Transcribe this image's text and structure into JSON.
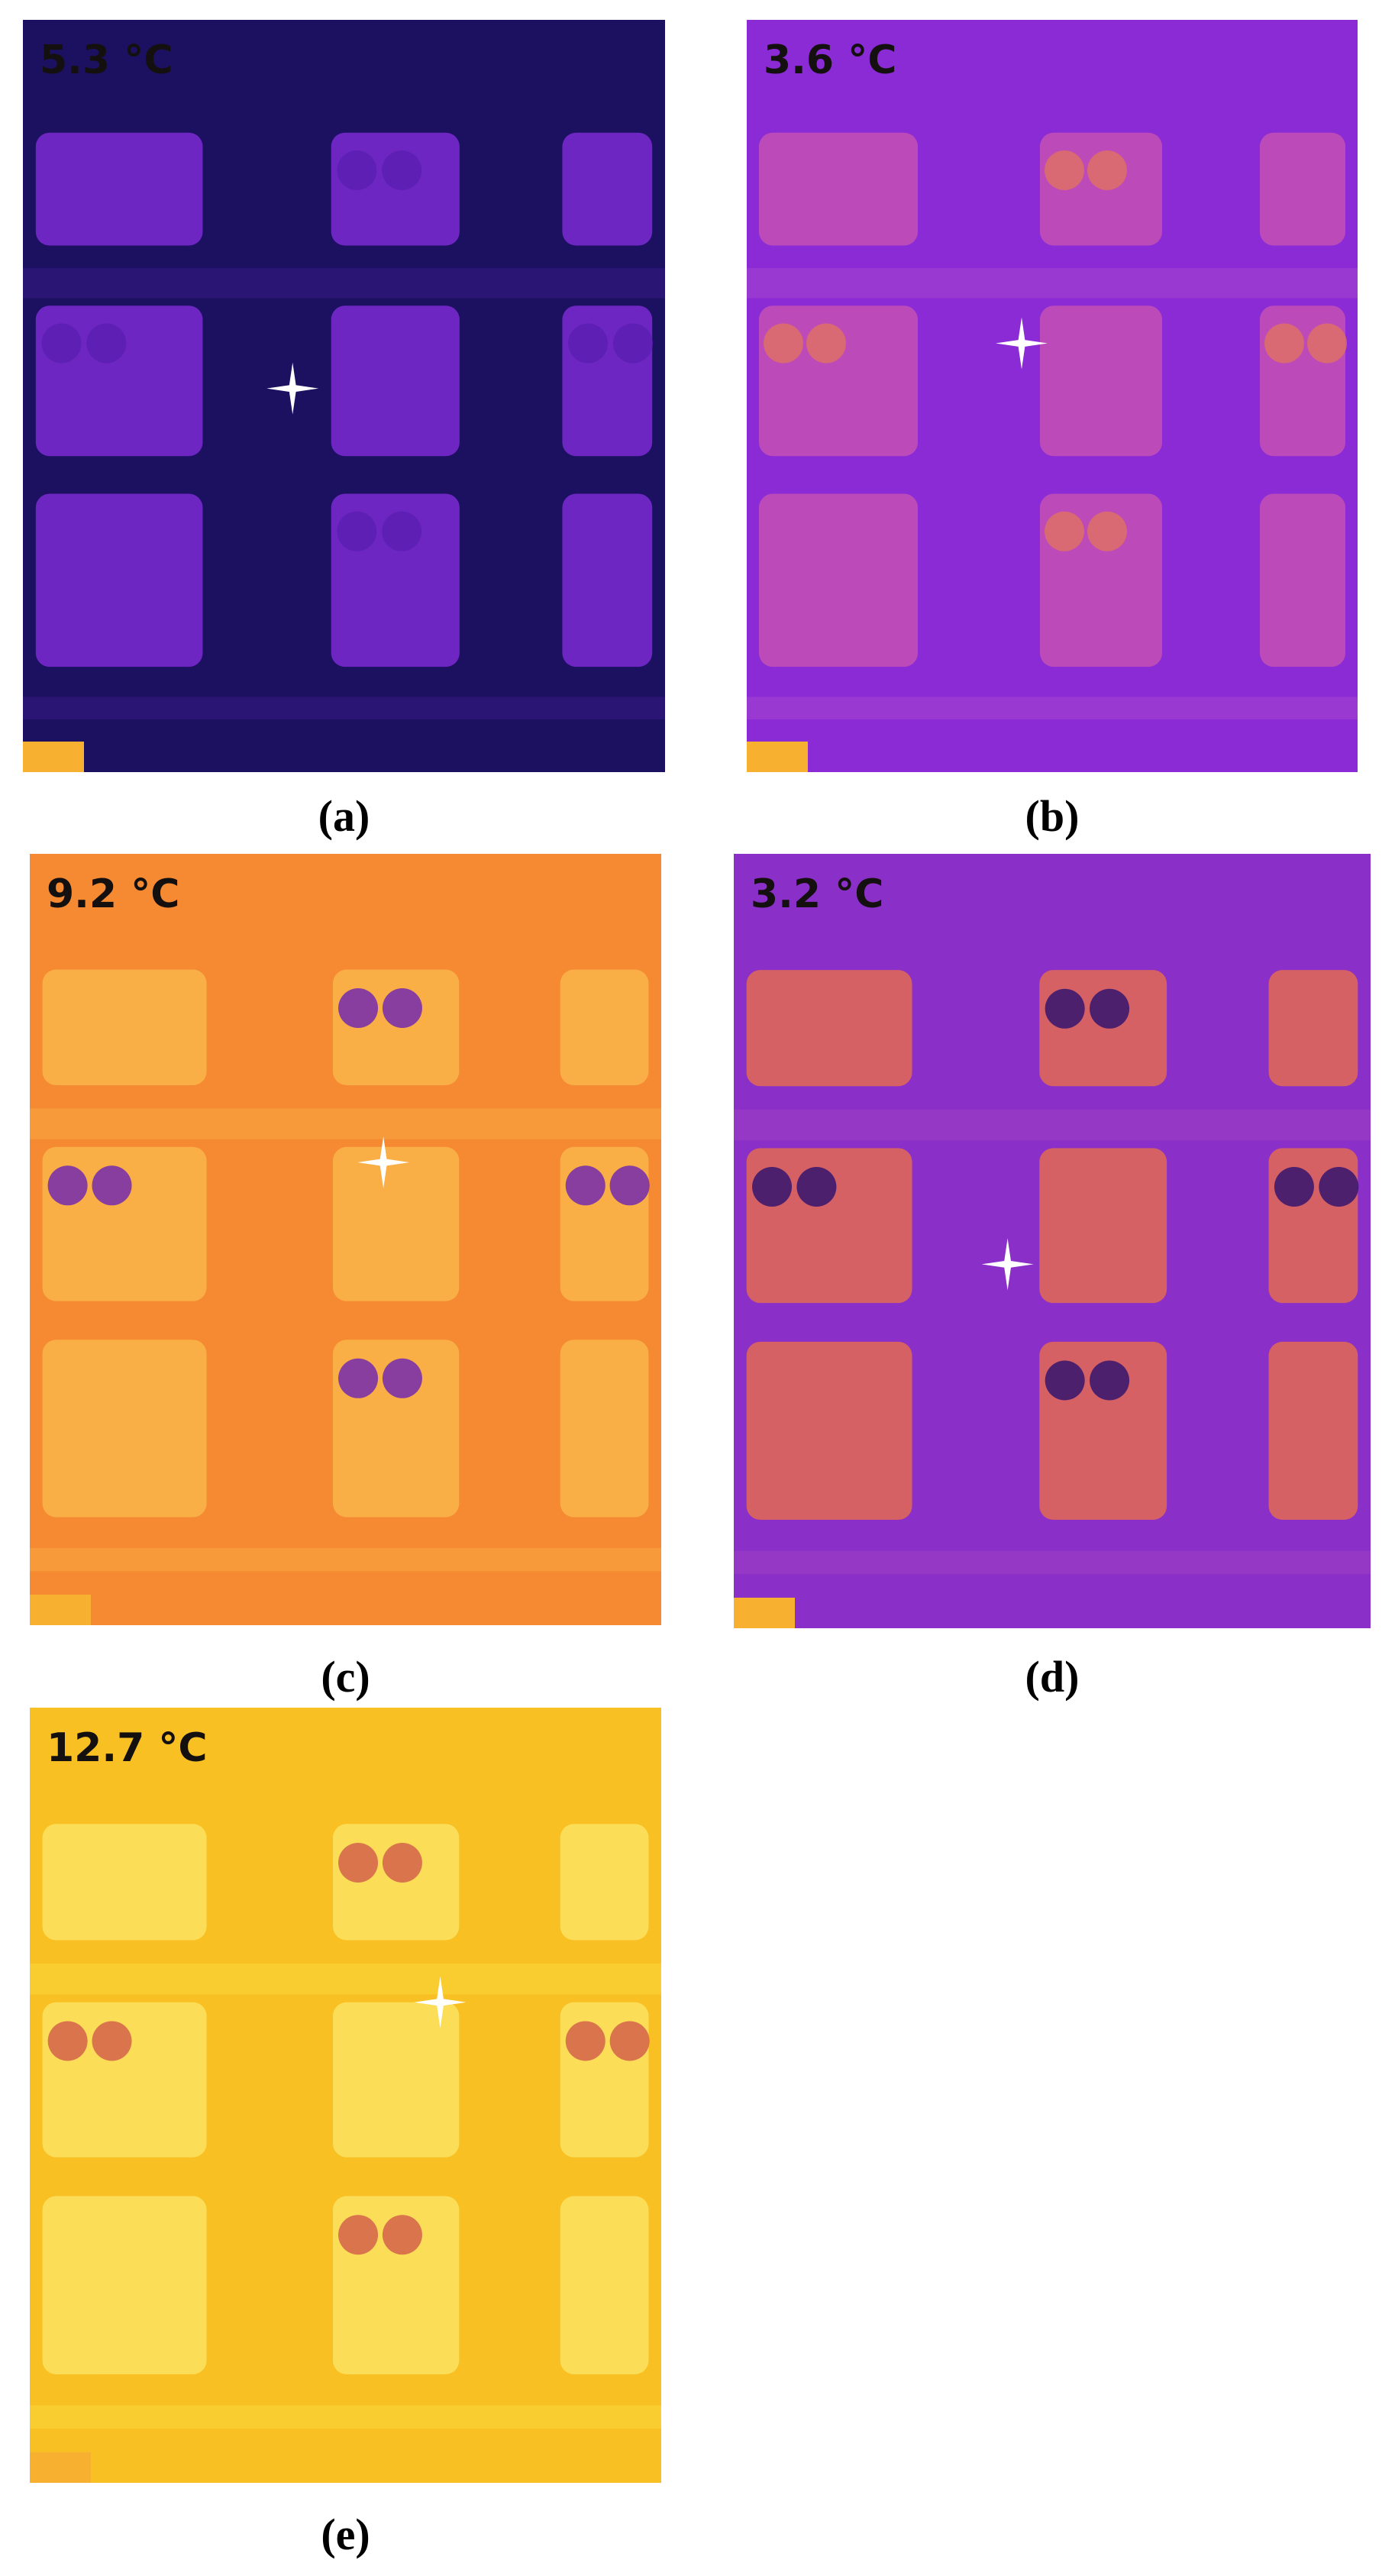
{
  "panels": [
    {
      "temperature": "5.3 °C",
      "label": "(a)"
    },
    {
      "temperature": "3.6 °C",
      "label": "(b)"
    },
    {
      "temperature": "9.2 °C",
      "label": "(c)"
    },
    {
      "temperature": "3.2 °C",
      "label": "(d)"
    },
    {
      "temperature": "12.7 °C",
      "label": "(e)"
    }
  ]
}
